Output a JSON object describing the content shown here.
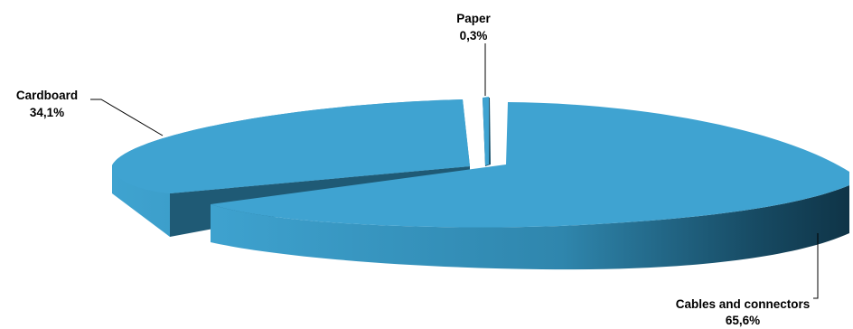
{
  "chart_data": {
    "type": "pie",
    "style": "3d-exploded",
    "title": "",
    "slices": [
      {
        "label": "Cables and connectors",
        "value": 65.6,
        "value_text": "65,6%"
      },
      {
        "label": "Cardboard",
        "value": 34.1,
        "value_text": "34,1%"
      },
      {
        "label": "Paper",
        "value": 0.3,
        "value_text": "0,3%"
      }
    ],
    "colors": {
      "top": "#3fa3d1",
      "side_light": "#3aa0cc",
      "side_dark": "#123f55",
      "cut_face": "#1f5a75"
    },
    "legend": "none"
  }
}
